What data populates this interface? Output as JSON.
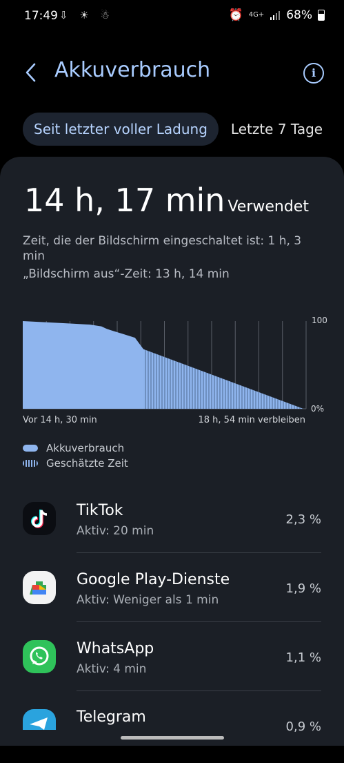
{
  "status_bar": {
    "time": "17:49",
    "left_icons": "⇩ ☀ ☃",
    "network": "4G+",
    "battery": "68%"
  },
  "header": {
    "title": "Akkuverbrauch"
  },
  "tabs": [
    {
      "label": "Seit letzter voller Ladung",
      "active": true
    },
    {
      "label": "Letzte 7 Tage",
      "active": false
    }
  ],
  "summary": {
    "used_value": "14 h, 17 min",
    "used_label": "Verwendet",
    "screen_on": "Zeit, die der Bildschirm eingeschaltet ist: 1 h, 3 min",
    "screen_off": "„Bildschirm aus“-Zeit: 13 h, 14 min"
  },
  "chart_data": {
    "type": "area",
    "y_axis_labels": [
      "100",
      "0%"
    ],
    "ylim": [
      0,
      100
    ],
    "x_start_label": "Vor 14 h, 30 min",
    "x_end_label": "18 h, 54 min verbleiben",
    "used_series": {
      "x": [
        0,
        0.06,
        0.12,
        0.18,
        0.24,
        0.28,
        0.3,
        0.32,
        0.36,
        0.4,
        0.43
      ],
      "y": [
        100,
        99,
        98,
        97,
        96,
        94,
        91,
        89,
        85,
        81,
        68
      ]
    },
    "estimated_series": {
      "x": [
        0.43,
        1.0
      ],
      "y": [
        68,
        0
      ]
    },
    "accent": "#8fb5ee"
  },
  "legend": [
    {
      "label": "Akkuverbrauch",
      "style": "solid"
    },
    {
      "label": "Geschätzte Zeit",
      "style": "striped"
    }
  ],
  "apps": [
    {
      "name": "TikTok",
      "sub": "Aktiv: 20 min",
      "percent": "2,3 %",
      "icon": "tiktok-icon"
    },
    {
      "name": "Google Play-Dienste",
      "sub": "Aktiv: Weniger als 1 min",
      "percent": "1,9 %",
      "icon": "google-play-services-icon"
    },
    {
      "name": "WhatsApp",
      "sub": "Aktiv: 4 min",
      "percent": "1,1 %",
      "icon": "whatsapp-icon"
    },
    {
      "name": "Telegram",
      "sub": "",
      "percent": "0,9 %",
      "icon": "telegram-icon"
    }
  ]
}
